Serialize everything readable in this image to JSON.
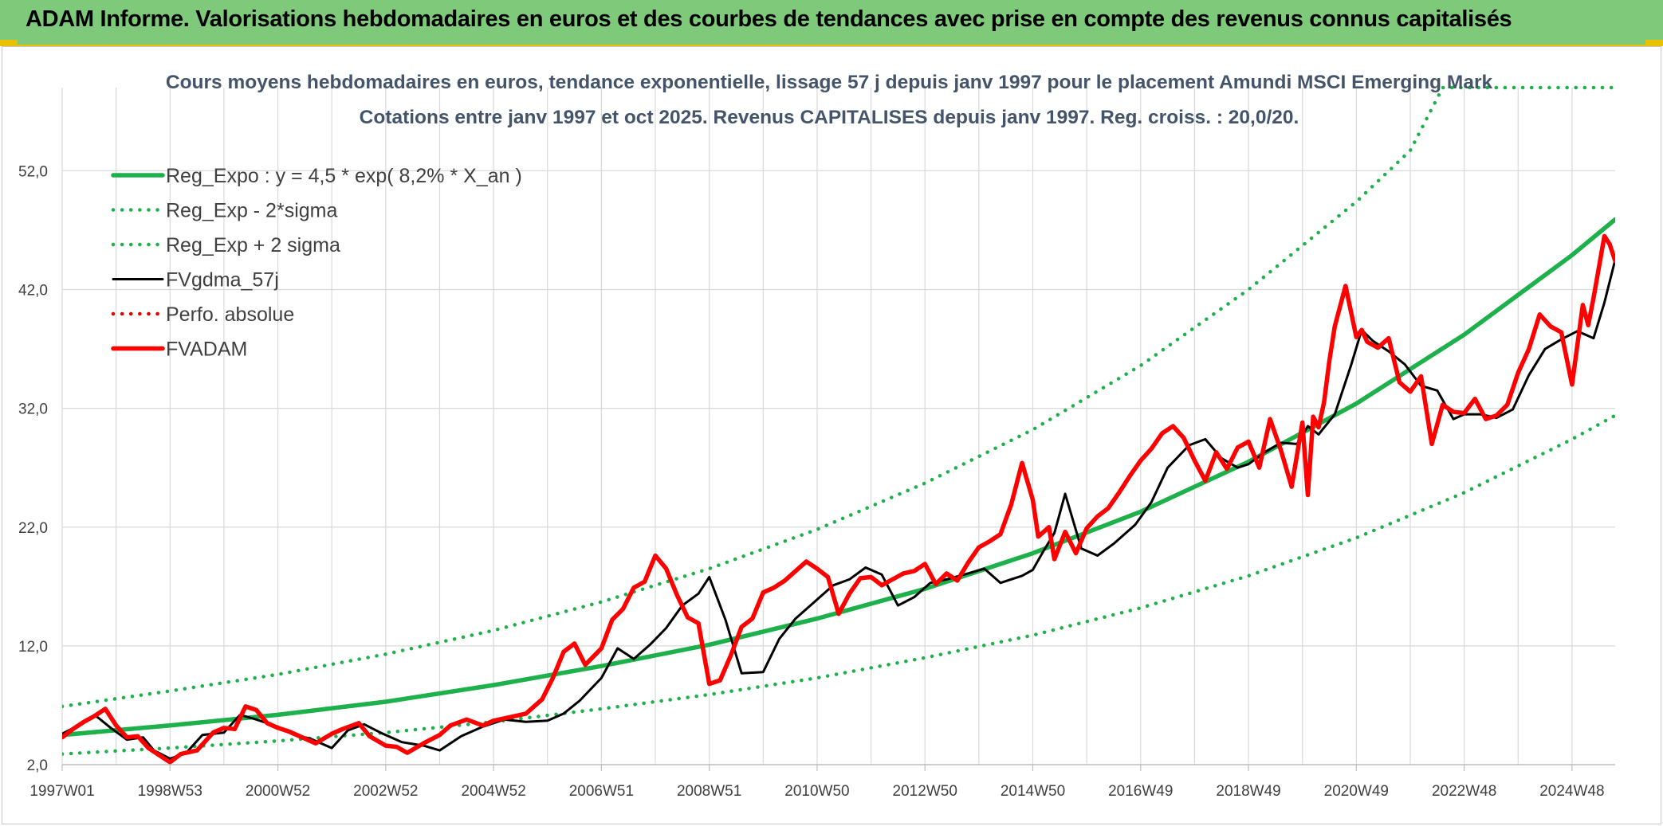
{
  "header": {
    "title": "ADAM Informe. Valorisations hebdomadaires en euros et des courbes de tendances avec prise en compte des revenus connus capitalisés"
  },
  "chart_data": {
    "type": "line",
    "title": "Cours moyens hebdomadaires en euros, tendance exponentielle, lissage 57 j depuis janv 1997 pour le placement Amundi MSCI Emerging Mark",
    "subtitle": "Cotations entre janv 1997 et oct 2025. Revenus CAPITALISES depuis janv 1997. Reg. croiss. : 20,0/20.",
    "xlim": [
      1997.0,
      2025.8
    ],
    "ylim": [
      2.0,
      59.0
    ],
    "y_ticks": [
      2.0,
      12.0,
      22.0,
      32.0,
      42.0,
      52.0
    ],
    "y_tick_labels": [
      "2,0",
      "12,0",
      "22,0",
      "32,0",
      "42,0",
      "52,0"
    ],
    "x_ticks": [
      {
        "label": "1997W01",
        "value": 1997.0
      },
      {
        "label": "1998W53",
        "value": 1999.0
      },
      {
        "label": "2000W52",
        "value": 2001.0
      },
      {
        "label": "2002W52",
        "value": 2003.0
      },
      {
        "label": "2004W52",
        "value": 2005.0
      },
      {
        "label": "2006W51",
        "value": 2007.0
      },
      {
        "label": "2008W51",
        "value": 2009.0
      },
      {
        "label": "2010W50",
        "value": 2011.0
      },
      {
        "label": "2012W50",
        "value": 2013.0
      },
      {
        "label": "2014W50",
        "value": 2015.0
      },
      {
        "label": "2016W49",
        "value": 2017.0
      },
      {
        "label": "2018W49",
        "value": 2019.0
      },
      {
        "label": "2020W49",
        "value": 2021.0
      },
      {
        "label": "2022W48",
        "value": 2023.0
      },
      {
        "label": "2024W48",
        "value": 2025.0
      }
    ],
    "grid": true,
    "legend_position": "top-left",
    "series": [
      {
        "name": "Reg_Expo : y = 4,5 * exp( 8,2% *  X_an )",
        "style": "solid-thick",
        "color": "#1db04b",
        "x": [
          1997.0,
          1999.0,
          2001.0,
          2003.0,
          2005.0,
          2007.0,
          2009.0,
          2011.0,
          2013.0,
          2015.0,
          2017.0,
          2019.0,
          2021.0,
          2023.0,
          2025.0,
          2025.8
        ],
        "y": [
          4.5,
          5.3,
          6.2,
          7.3,
          8.7,
          10.3,
          12.1,
          14.3,
          16.8,
          19.8,
          23.3,
          27.5,
          32.4,
          38.2,
          44.9,
          47.9
        ]
      },
      {
        "name": "Reg_Exp - 2*sigma",
        "style": "dotted",
        "color": "#1db04b",
        "x": [
          1997.0,
          1999.0,
          2001.0,
          2003.0,
          2005.0,
          2007.0,
          2009.0,
          2011.0,
          2013.0,
          2015.0,
          2017.0,
          2019.0,
          2021.0,
          2023.0,
          2025.0,
          2025.8
        ],
        "y": [
          2.9,
          3.4,
          4.0,
          4.7,
          5.6,
          6.7,
          7.9,
          9.3,
          11.0,
          12.9,
          15.2,
          17.9,
          21.1,
          24.9,
          29.4,
          31.4
        ]
      },
      {
        "name": "Reg_Exp + 2 sigma",
        "style": "dotted",
        "color": "#1db04b",
        "x": [
          1997.0,
          1999.0,
          2001.0,
          2003.0,
          2005.0,
          2007.0,
          2009.0,
          2011.0,
          2013.0,
          2015.0,
          2017.0,
          2019.0,
          2021.0,
          2022.0,
          2022.6,
          2025.8
        ],
        "y": [
          6.9,
          8.2,
          9.6,
          11.3,
          13.3,
          15.7,
          18.5,
          21.8,
          25.7,
          30.2,
          35.6,
          42.0,
          49.4,
          53.7,
          59.0,
          59.0
        ]
      },
      {
        "name": "FVgdma_57j",
        "style": "solid",
        "color": "#000000",
        "x": [
          1997.0,
          1997.3,
          1997.6,
          1997.9,
          1998.2,
          1998.5,
          1998.7,
          1999.0,
          1999.3,
          1999.6,
          2000.0,
          2000.3,
          2000.6,
          2001.0,
          2001.3,
          2001.6,
          2002.0,
          2002.3,
          2002.6,
          2002.9,
          2003.3,
          2003.7,
          2004.0,
          2004.4,
          2004.8,
          2005.2,
          2005.6,
          2006.0,
          2006.3,
          2006.6,
          2007.0,
          2007.3,
          2007.6,
          2007.9,
          2008.2,
          2008.5,
          2008.8,
          2009.0,
          2009.3,
          2009.6,
          2010.0,
          2010.3,
          2010.6,
          2011.0,
          2011.3,
          2011.6,
          2011.9,
          2012.2,
          2012.5,
          2012.8,
          2013.1,
          2013.4,
          2013.8,
          2014.1,
          2014.4,
          2014.8,
          2015.0,
          2015.2,
          2015.4,
          2015.6,
          2015.9,
          2016.2,
          2016.5,
          2016.9,
          2017.2,
          2017.5,
          2017.9,
          2018.2,
          2018.5,
          2018.8,
          2019.0,
          2019.3,
          2019.6,
          2019.9,
          2020.1,
          2020.3,
          2020.6,
          2020.9,
          2021.1,
          2021.3,
          2021.6,
          2021.9,
          2022.2,
          2022.5,
          2022.8,
          2023.0,
          2023.3,
          2023.6,
          2023.9,
          2024.2,
          2024.5,
          2024.8,
          2025.1,
          2025.4,
          2025.6,
          2025.8
        ],
        "y": [
          4.6,
          5.3,
          6.2,
          5.1,
          4.1,
          4.3,
          3.2,
          2.5,
          3.0,
          4.5,
          4.7,
          6.2,
          5.8,
          5.2,
          4.5,
          4.2,
          3.4,
          4.9,
          5.4,
          4.7,
          3.9,
          3.6,
          3.2,
          4.4,
          5.2,
          5.8,
          5.6,
          5.7,
          6.3,
          7.4,
          9.3,
          11.8,
          10.9,
          12.1,
          13.5,
          15.4,
          16.4,
          17.8,
          14.2,
          9.7,
          9.8,
          12.6,
          14.3,
          15.9,
          17.1,
          17.6,
          18.6,
          18.0,
          15.4,
          16.1,
          17.3,
          17.6,
          18.1,
          18.5,
          17.3,
          17.9,
          18.4,
          20.0,
          21.5,
          24.8,
          20.2,
          19.6,
          20.6,
          22.2,
          24.1,
          27.0,
          28.9,
          29.4,
          27.8,
          27.0,
          27.3,
          28.3,
          29.1,
          29.0,
          30.5,
          29.8,
          31.5,
          35.6,
          38.6,
          37.7,
          36.8,
          35.7,
          33.9,
          33.5,
          31.1,
          31.5,
          31.5,
          31.2,
          31.9,
          34.8,
          37.0,
          37.8,
          38.5,
          37.9,
          40.9,
          44.5
        ]
      },
      {
        "name": "Perfo. absolue",
        "style": "dotted",
        "color": "#e00000",
        "x": [],
        "y": []
      },
      {
        "name": "FVADAM",
        "style": "solid-thick",
        "color": "#ff0000",
        "x": [
          1997.0,
          1997.2,
          1997.4,
          1997.6,
          1997.8,
          1998.0,
          1998.2,
          1998.4,
          1998.6,
          1998.8,
          1999.0,
          1999.2,
          1999.5,
          1999.8,
          2000.0,
          2000.2,
          2000.4,
          2000.6,
          2000.8,
          2001.0,
          2001.2,
          2001.5,
          2001.7,
          2002.0,
          2002.2,
          2002.5,
          2002.7,
          2003.0,
          2003.2,
          2003.4,
          2003.7,
          2004.0,
          2004.2,
          2004.5,
          2004.8,
          2005.0,
          2005.3,
          2005.6,
          2005.9,
          2006.1,
          2006.3,
          2006.5,
          2006.7,
          2007.0,
          2007.2,
          2007.4,
          2007.6,
          2007.8,
          2008.0,
          2008.2,
          2008.4,
          2008.6,
          2008.8,
          2009.0,
          2009.2,
          2009.4,
          2009.6,
          2009.8,
          2010.0,
          2010.2,
          2010.4,
          2010.6,
          2010.8,
          2011.0,
          2011.2,
          2011.4,
          2011.6,
          2011.8,
          2012.0,
          2012.2,
          2012.4,
          2012.6,
          2012.8,
          2013.0,
          2013.2,
          2013.4,
          2013.6,
          2013.8,
          2014.0,
          2014.2,
          2014.4,
          2014.6,
          2014.8,
          2015.0,
          2015.1,
          2015.3,
          2015.4,
          2015.6,
          2015.8,
          2016.0,
          2016.2,
          2016.4,
          2016.6,
          2016.8,
          2017.0,
          2017.2,
          2017.4,
          2017.6,
          2017.8,
          2018.0,
          2018.2,
          2018.4,
          2018.6,
          2018.8,
          2019.0,
          2019.2,
          2019.4,
          2019.6,
          2019.8,
          2020.0,
          2020.1,
          2020.2,
          2020.3,
          2020.4,
          2020.5,
          2020.6,
          2020.8,
          2021.0,
          2021.1,
          2021.2,
          2021.4,
          2021.6,
          2021.8,
          2022.0,
          2022.2,
          2022.4,
          2022.6,
          2022.8,
          2023.0,
          2023.2,
          2023.4,
          2023.6,
          2023.8,
          2024.0,
          2024.2,
          2024.4,
          2024.6,
          2024.8,
          2025.0,
          2025.2,
          2025.3,
          2025.4,
          2025.5,
          2025.6,
          2025.7,
          2025.8
        ],
        "y": [
          4.3,
          5.0,
          5.6,
          6.1,
          6.7,
          5.3,
          4.3,
          4.4,
          3.4,
          2.8,
          2.2,
          2.9,
          3.2,
          4.7,
          5.1,
          5.0,
          6.9,
          6.6,
          5.5,
          5.1,
          4.8,
          4.2,
          3.8,
          4.6,
          5.0,
          5.5,
          4.4,
          3.6,
          3.5,
          3.0,
          3.8,
          4.5,
          5.3,
          5.8,
          5.3,
          5.7,
          6.0,
          6.3,
          7.5,
          9.3,
          11.5,
          12.2,
          10.4,
          11.8,
          14.2,
          15.1,
          16.9,
          17.4,
          19.6,
          18.5,
          16.3,
          14.4,
          13.9,
          8.8,
          9.1,
          11.2,
          13.6,
          14.3,
          16.5,
          16.9,
          17.5,
          18.3,
          19.1,
          18.5,
          17.8,
          14.7,
          16.4,
          17.7,
          17.8,
          17.1,
          17.6,
          18.1,
          18.3,
          18.9,
          17.2,
          18.1,
          17.5,
          19.0,
          20.3,
          20.8,
          21.4,
          23.9,
          27.4,
          24.3,
          21.2,
          22.0,
          19.3,
          21.6,
          19.8,
          21.9,
          22.9,
          23.6,
          24.9,
          26.3,
          27.6,
          28.6,
          29.9,
          30.5,
          29.5,
          27.6,
          25.9,
          28.3,
          26.9,
          28.7,
          29.2,
          27.0,
          31.1,
          28.5,
          25.4,
          30.8,
          24.7,
          31.3,
          30.4,
          32.5,
          36.0,
          38.9,
          42.3,
          38.0,
          38.6,
          37.6,
          37.1,
          37.9,
          34.2,
          33.4,
          34.7,
          29.0,
          32.3,
          31.7,
          31.6,
          32.8,
          31.1,
          31.4,
          32.3,
          35.0,
          37.0,
          39.9,
          38.9,
          38.4,
          34.0,
          40.7,
          39.0,
          41.3,
          43.9,
          46.5,
          45.8,
          44.4
        ]
      }
    ]
  }
}
